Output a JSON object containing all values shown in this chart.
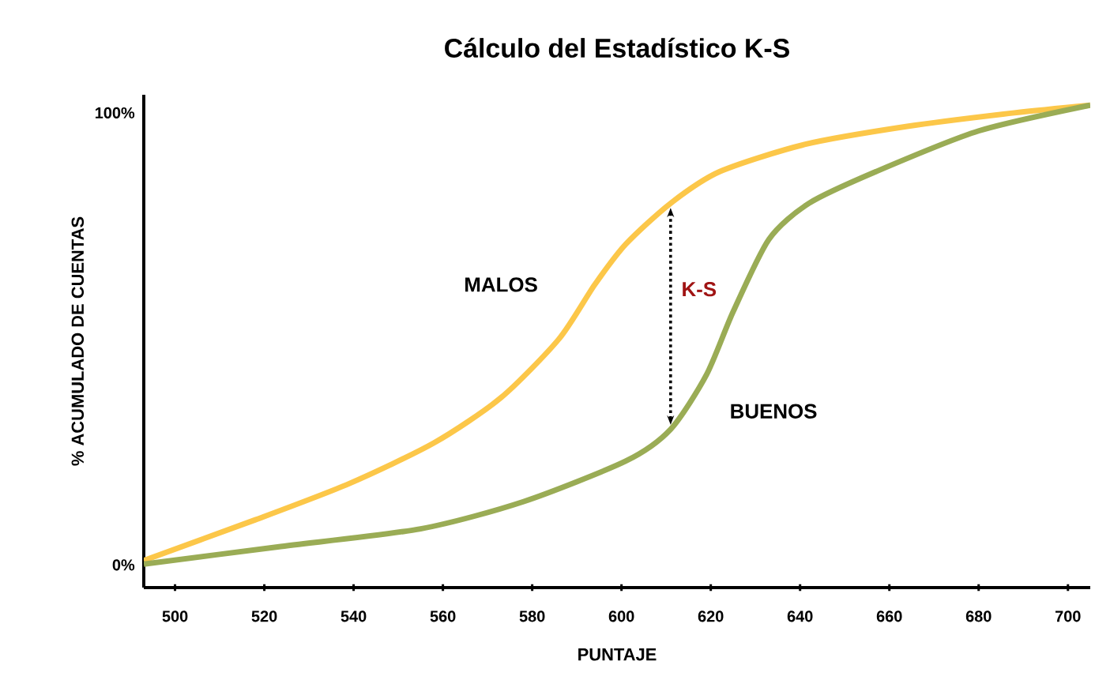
{
  "chart_data": {
    "type": "line",
    "title": "Cálculo del Estadístico K-S",
    "xlabel": "PUNTAJE",
    "ylabel": "% ACUMULADO DE CUENTAS",
    "xlim": [
      493,
      705
    ],
    "ylim": [
      -5,
      104
    ],
    "xticks": [
      500,
      520,
      540,
      560,
      580,
      600,
      620,
      640,
      660,
      680,
      700
    ],
    "yticks": [
      {
        "value": 0,
        "label": "0%"
      },
      {
        "value": 100,
        "label": "100%"
      }
    ],
    "grid": false,
    "legend": false,
    "marker": "none",
    "line_style": "solid",
    "series": [
      {
        "name": "MALOS",
        "color": "#fcc749",
        "x": [
          493,
          518,
          539,
          558,
          573,
          586,
          594,
          601,
          611,
          622,
          641,
          664,
          688,
          705
        ],
        "values": [
          1,
          10,
          18,
          27,
          37,
          50,
          62,
          71,
          80,
          87,
          93,
          97,
          100,
          101.7
        ]
      },
      {
        "name": "BUENOS",
        "color": "#9aac55",
        "x": [
          493,
          523,
          555,
          578,
          601,
          611,
          619,
          625,
          633,
          642,
          657,
          680,
          705
        ],
        "values": [
          0.2,
          4,
          8,
          14,
          23,
          30,
          42,
          56,
          72,
          80,
          87,
          96,
          101.7
        ]
      }
    ],
    "annotations": [
      "K-S"
    ]
  }
}
